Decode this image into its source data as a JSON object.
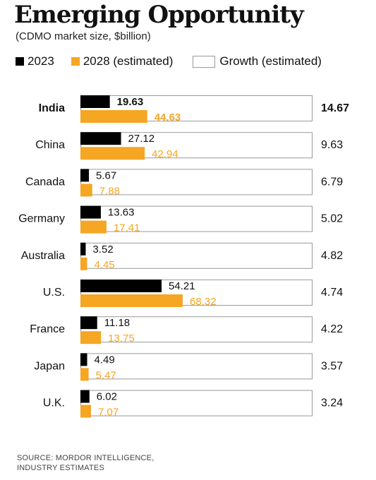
{
  "chart_data": {
    "type": "bar",
    "title": "Emerging Opportunity",
    "subtitle": "(CDMO market size, $billion)",
    "categories": [
      "India",
      "China",
      "Canada",
      "Germany",
      "Australia",
      "U.S.",
      "France",
      "Japan",
      "U.K."
    ],
    "highlight_category": "India",
    "series": [
      {
        "name": "2023",
        "values": [
          19.63,
          27.12,
          5.67,
          13.63,
          3.52,
          54.21,
          11.18,
          4.49,
          6.02
        ],
        "color": "#000000"
      },
      {
        "name": "2028 (estimated)",
        "values": [
          44.63,
          42.94,
          7.88,
          17.41,
          4.45,
          68.32,
          13.75,
          5.47,
          7.07
        ],
        "color": "#f5a623"
      }
    ],
    "growth": {
      "name": "Growth (estimated)",
      "values": [
        14.67,
        9.63,
        6.79,
        5.02,
        4.82,
        4.74,
        4.22,
        3.57,
        3.24
      ]
    },
    "ylim": [
      0,
      68.32
    ],
    "grid": false,
    "legend_position": "top-left"
  },
  "source": {
    "line1": "Source: Mordor Intelligence,",
    "line2": "Industry estimates"
  }
}
